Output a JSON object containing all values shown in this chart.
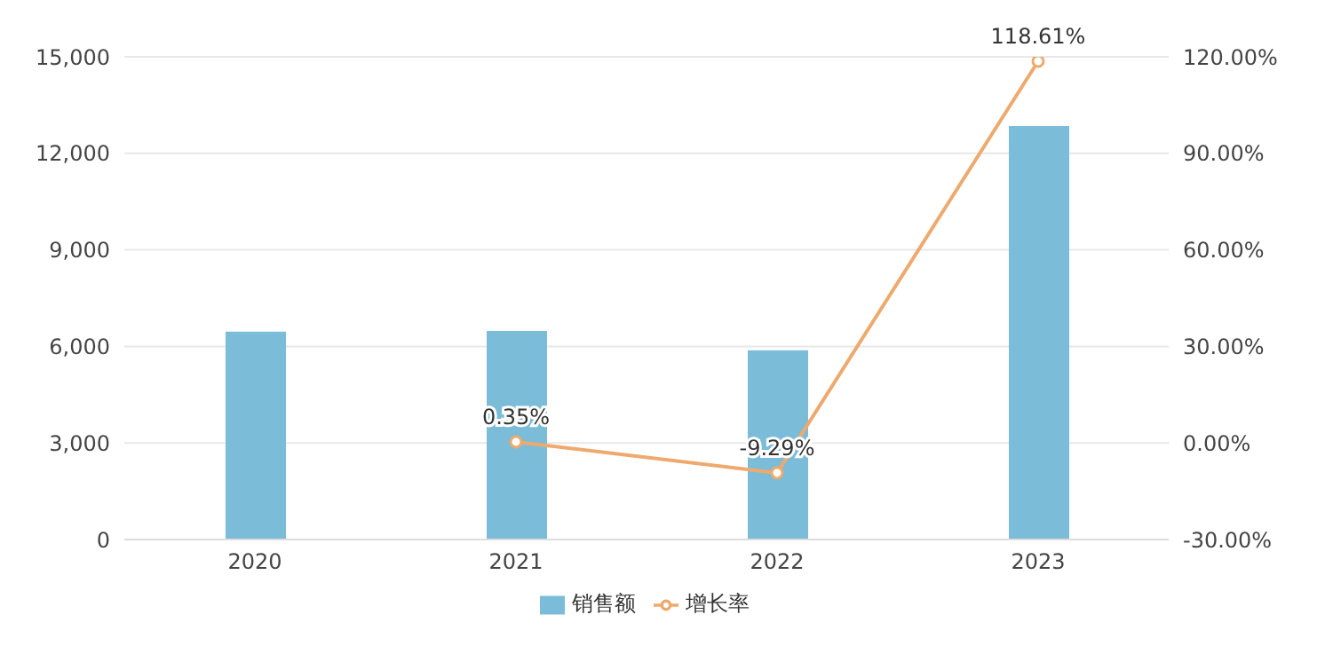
{
  "chart_data": {
    "type": "bar",
    "categories": [
      "2020",
      "2021",
      "2022",
      "2023"
    ],
    "series": [
      {
        "name": "销售额",
        "color": "#7bbcd9",
        "values": [
          6460,
          6480,
          5880,
          12850
        ]
      },
      {
        "name": "增长率",
        "type": "line",
        "axis": "y2",
        "color": "#eeaa6e",
        "values": [
          null,
          0.35,
          -9.29,
          118.61
        ],
        "value_labels": [
          null,
          "0.35%",
          "-9.29%",
          "118.61%"
        ]
      }
    ],
    "ylim": [
      0,
      15000
    ],
    "yticks": [
      0,
      {
        "value": 3000,
        "label": "3,000"
      },
      {
        "value": 6000,
        "label": "6,000"
      },
      {
        "value": 9000,
        "label": "9,000"
      },
      {
        "value": 12000,
        "label": "12,000"
      },
      {
        "value": 15000,
        "label": "15,000"
      }
    ],
    "y2lim": [
      -30,
      120
    ],
    "y2ticks": [
      {
        "value": -30,
        "label": "-30.00%"
      },
      {
        "value": 0,
        "label": "0.00%"
      },
      {
        "value": 30,
        "label": "30.00%"
      },
      {
        "value": 60,
        "label": "60.00%"
      },
      {
        "value": 90,
        "label": "90.00%"
      },
      {
        "value": 120,
        "label": "120.00%"
      }
    ],
    "grid": "y",
    "legend": "bottom",
    "marker": "circle",
    "line_style": "solid"
  }
}
